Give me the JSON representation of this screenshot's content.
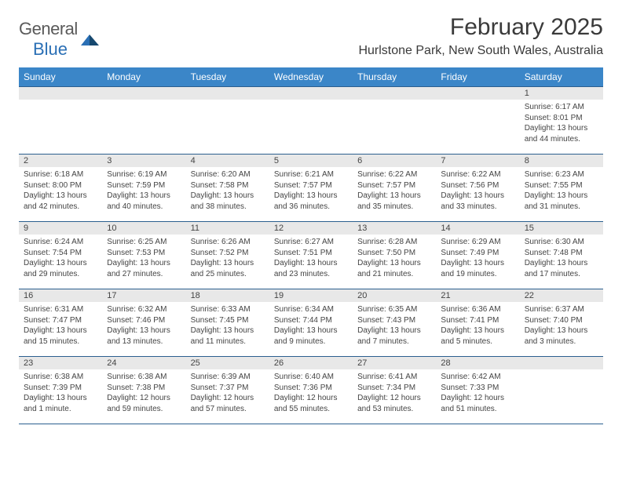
{
  "logo": {
    "word1": "General",
    "word2": "Blue"
  },
  "title": "February 2025",
  "location": "Hurlstone Park, New South Wales, Australia",
  "colors": {
    "header_bg": "#3b86c8",
    "header_text": "#ffffff",
    "daynum_bg": "#e8e8e8",
    "row_border": "#2b5f8f",
    "text": "#444444",
    "logo_gray": "#5a5a5a",
    "logo_blue": "#2a6fb5"
  },
  "day_labels": [
    "Sunday",
    "Monday",
    "Tuesday",
    "Wednesday",
    "Thursday",
    "Friday",
    "Saturday"
  ],
  "weeks": [
    [
      null,
      null,
      null,
      null,
      null,
      null,
      {
        "n": "1",
        "sunrise": "6:17 AM",
        "sunset": "8:01 PM",
        "daylight": "13 hours and 44 minutes."
      }
    ],
    [
      {
        "n": "2",
        "sunrise": "6:18 AM",
        "sunset": "8:00 PM",
        "daylight": "13 hours and 42 minutes."
      },
      {
        "n": "3",
        "sunrise": "6:19 AM",
        "sunset": "7:59 PM",
        "daylight": "13 hours and 40 minutes."
      },
      {
        "n": "4",
        "sunrise": "6:20 AM",
        "sunset": "7:58 PM",
        "daylight": "13 hours and 38 minutes."
      },
      {
        "n": "5",
        "sunrise": "6:21 AM",
        "sunset": "7:57 PM",
        "daylight": "13 hours and 36 minutes."
      },
      {
        "n": "6",
        "sunrise": "6:22 AM",
        "sunset": "7:57 PM",
        "daylight": "13 hours and 35 minutes."
      },
      {
        "n": "7",
        "sunrise": "6:22 AM",
        "sunset": "7:56 PM",
        "daylight": "13 hours and 33 minutes."
      },
      {
        "n": "8",
        "sunrise": "6:23 AM",
        "sunset": "7:55 PM",
        "daylight": "13 hours and 31 minutes."
      }
    ],
    [
      {
        "n": "9",
        "sunrise": "6:24 AM",
        "sunset": "7:54 PM",
        "daylight": "13 hours and 29 minutes."
      },
      {
        "n": "10",
        "sunrise": "6:25 AM",
        "sunset": "7:53 PM",
        "daylight": "13 hours and 27 minutes."
      },
      {
        "n": "11",
        "sunrise": "6:26 AM",
        "sunset": "7:52 PM",
        "daylight": "13 hours and 25 minutes."
      },
      {
        "n": "12",
        "sunrise": "6:27 AM",
        "sunset": "7:51 PM",
        "daylight": "13 hours and 23 minutes."
      },
      {
        "n": "13",
        "sunrise": "6:28 AM",
        "sunset": "7:50 PM",
        "daylight": "13 hours and 21 minutes."
      },
      {
        "n": "14",
        "sunrise": "6:29 AM",
        "sunset": "7:49 PM",
        "daylight": "13 hours and 19 minutes."
      },
      {
        "n": "15",
        "sunrise": "6:30 AM",
        "sunset": "7:48 PM",
        "daylight": "13 hours and 17 minutes."
      }
    ],
    [
      {
        "n": "16",
        "sunrise": "6:31 AM",
        "sunset": "7:47 PM",
        "daylight": "13 hours and 15 minutes."
      },
      {
        "n": "17",
        "sunrise": "6:32 AM",
        "sunset": "7:46 PM",
        "daylight": "13 hours and 13 minutes."
      },
      {
        "n": "18",
        "sunrise": "6:33 AM",
        "sunset": "7:45 PM",
        "daylight": "13 hours and 11 minutes."
      },
      {
        "n": "19",
        "sunrise": "6:34 AM",
        "sunset": "7:44 PM",
        "daylight": "13 hours and 9 minutes."
      },
      {
        "n": "20",
        "sunrise": "6:35 AM",
        "sunset": "7:43 PM",
        "daylight": "13 hours and 7 minutes."
      },
      {
        "n": "21",
        "sunrise": "6:36 AM",
        "sunset": "7:41 PM",
        "daylight": "13 hours and 5 minutes."
      },
      {
        "n": "22",
        "sunrise": "6:37 AM",
        "sunset": "7:40 PM",
        "daylight": "13 hours and 3 minutes."
      }
    ],
    [
      {
        "n": "23",
        "sunrise": "6:38 AM",
        "sunset": "7:39 PM",
        "daylight": "13 hours and 1 minute."
      },
      {
        "n": "24",
        "sunrise": "6:38 AM",
        "sunset": "7:38 PM",
        "daylight": "12 hours and 59 minutes."
      },
      {
        "n": "25",
        "sunrise": "6:39 AM",
        "sunset": "7:37 PM",
        "daylight": "12 hours and 57 minutes."
      },
      {
        "n": "26",
        "sunrise": "6:40 AM",
        "sunset": "7:36 PM",
        "daylight": "12 hours and 55 minutes."
      },
      {
        "n": "27",
        "sunrise": "6:41 AM",
        "sunset": "7:34 PM",
        "daylight": "12 hours and 53 minutes."
      },
      {
        "n": "28",
        "sunrise": "6:42 AM",
        "sunset": "7:33 PM",
        "daylight": "12 hours and 51 minutes."
      },
      null
    ]
  ],
  "text_labels": {
    "sunrise": "Sunrise:",
    "sunset": "Sunset:",
    "daylight": "Daylight:"
  }
}
